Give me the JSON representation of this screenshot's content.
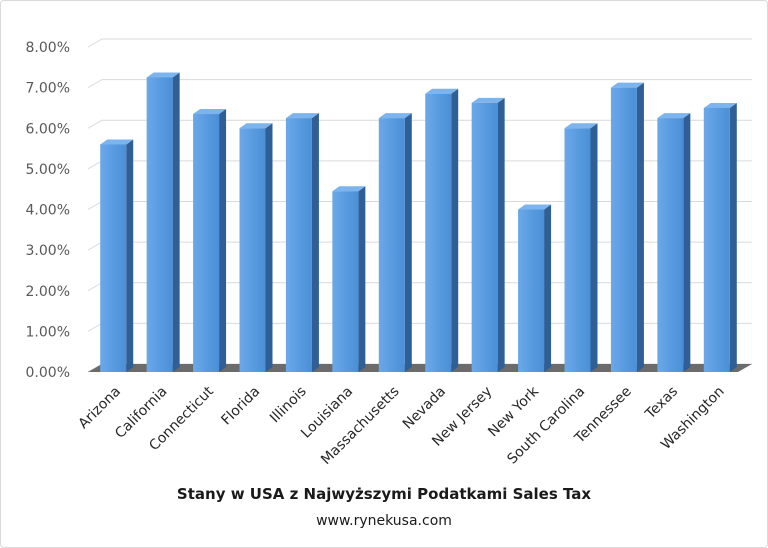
{
  "chart_data": {
    "type": "bar",
    "title": "Stany w USA z Najwyższymi Podatkami Sales Tax",
    "subtitle": "www.rynekusa.com",
    "xlabel": "",
    "ylabel": "",
    "ylim": [
      0,
      0.08
    ],
    "y_ticks": [
      "0.00%",
      "1.00%",
      "2.00%",
      "3.00%",
      "4.00%",
      "5.00%",
      "6.00%",
      "7.00%",
      "8.00%"
    ],
    "grid": true,
    "legend": "none",
    "categories": [
      "Arizona",
      "California",
      "Connecticut",
      "Florida",
      "Illinois",
      "Louisiana",
      "Massachusetts",
      "Nevada",
      "New Jersey",
      "New York",
      "South Carolina",
      "Tennessee",
      "Texas",
      "Washington"
    ],
    "values": [
      0.056,
      0.0725,
      0.0635,
      0.06,
      0.0625,
      0.0445,
      0.0625,
      0.0685,
      0.06625,
      0.04,
      0.06,
      0.07,
      0.0625,
      0.065
    ],
    "colors": {
      "bar_front": "#4a8fd6",
      "bar_light": "#6aa8ea",
      "bar_side": "#2f5f94",
      "bar_top": "#7cb4ee",
      "floor": "#6b6b6b",
      "grid": "#d9d9d9"
    }
  }
}
